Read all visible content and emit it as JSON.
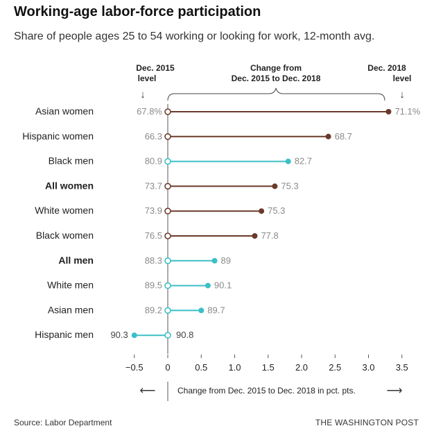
{
  "header": {
    "title": "Working-age labor-force participation",
    "subtitle": "Share of people ages 25 to 54 working or looking for work, 12-month avg."
  },
  "annotations": {
    "left_line1": "Dec. 2015",
    "left_line2": "level",
    "mid_line1": "Change from",
    "mid_line2": "Dec. 2015 to Dec. 2018",
    "right_line1": "Dec. 2018",
    "right_line2": "level",
    "arrow_down": "↓",
    "axis_note": "Change from Dec. 2015 to Dec. 2018 in pct. pts.",
    "arrow_left": "⟵",
    "arrow_right": "⟶"
  },
  "footer": {
    "source": "Source: Labor Department",
    "brand": "THE WASHINGTON POST"
  },
  "colors": {
    "women": "#6b3a2a",
    "men": "#3bbfc5",
    "axis": "#555555",
    "value_text": "#8a8a8a"
  },
  "chart_data": {
    "type": "dot-range",
    "xlabel": "Change from Dec. 2015 to Dec. 2018 in pct. pts.",
    "xlim": [
      -0.5,
      3.5
    ],
    "xticks": [
      -0.5,
      0,
      0.5,
      1.0,
      1.5,
      2.0,
      2.5,
      3.0,
      3.5
    ],
    "xtick_labels": [
      "−0.5",
      "0",
      "0.5",
      "1.0",
      "1.5",
      "2.0",
      "2.5",
      "3.0",
      "3.5"
    ],
    "rows": [
      {
        "group": "Asian women",
        "dec2015": "67.8%",
        "dec2018": "71.1%",
        "change": 3.3,
        "bold": false,
        "sex": "women"
      },
      {
        "group": "Hispanic women",
        "dec2015": "66.3",
        "dec2018": "68.7",
        "change": 2.4,
        "bold": false,
        "sex": "women"
      },
      {
        "group": "Black men",
        "dec2015": "80.9",
        "dec2018": "82.7",
        "change": 1.8,
        "bold": false,
        "sex": "men"
      },
      {
        "group": "All women",
        "dec2015": "73.7",
        "dec2018": "75.3",
        "change": 1.6,
        "bold": true,
        "sex": "women"
      },
      {
        "group": "White women",
        "dec2015": "73.9",
        "dec2018": "75.3",
        "change": 1.4,
        "bold": false,
        "sex": "women"
      },
      {
        "group": "Black women",
        "dec2015": "76.5",
        "dec2018": "77.8",
        "change": 1.3,
        "bold": false,
        "sex": "women"
      },
      {
        "group": "All men",
        "dec2015": "88.3",
        "dec2018": "89",
        "change": 0.7,
        "bold": true,
        "sex": "men"
      },
      {
        "group": "White men",
        "dec2015": "89.5",
        "dec2018": "90.1",
        "change": 0.6,
        "bold": false,
        "sex": "men"
      },
      {
        "group": "Asian men",
        "dec2015": "89.2",
        "dec2018": "89.7",
        "change": 0.5,
        "bold": false,
        "sex": "men"
      },
      {
        "group": "Hispanic men",
        "dec2015": "90.8",
        "dec2018": "90.3",
        "change": -0.5,
        "bold": false,
        "sex": "men"
      }
    ]
  }
}
